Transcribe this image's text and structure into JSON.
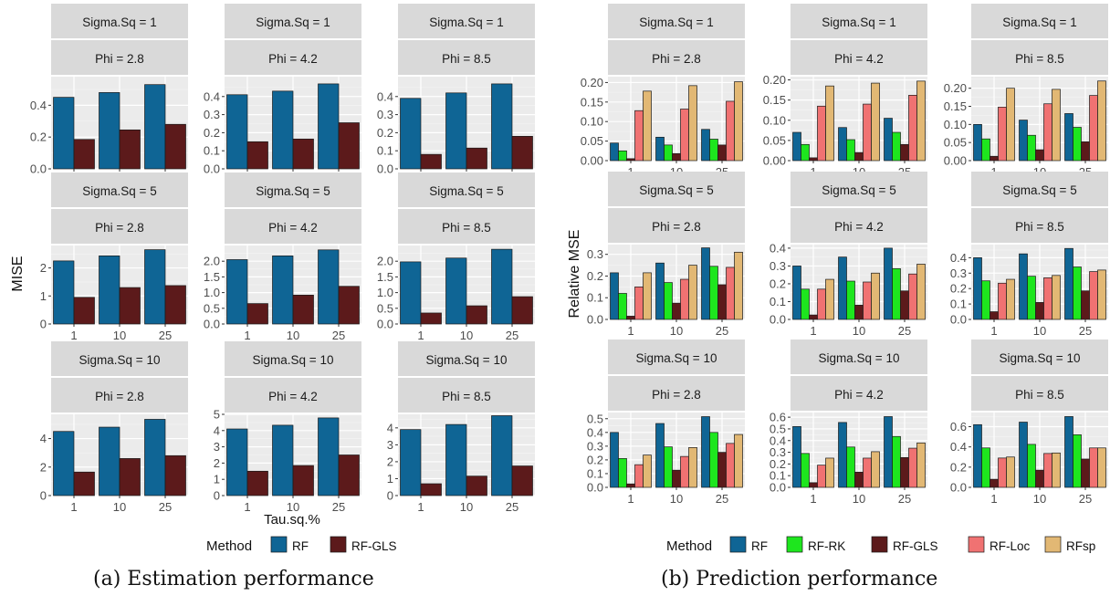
{
  "captions": {
    "a": "(a) Estimation performance",
    "b": "(b) Prediction performance"
  },
  "legend_title": "Method",
  "colors": {
    "RF": "#0f6595",
    "RF-GLS": "#5c1a1b",
    "RF-RK": "#1ee61e",
    "RF-Loc": "#f07272",
    "RFsp": "#e2b874"
  },
  "chart_data": [
    {
      "type": "bar",
      "id": "estimation",
      "xlabel": "Tau.sq.%",
      "ylabel": "MISE",
      "categories": [
        "1",
        "10",
        "25"
      ],
      "methods": [
        "RF",
        "RF-GLS"
      ],
      "legend_position": "bottom",
      "panels": [
        {
          "strip": [
            "Sigma.Sq = 1",
            "Phi = 2.8"
          ],
          "ylim": [
            0,
            0.58
          ],
          "yticks": [
            "0.0",
            "0.2",
            "0.4"
          ],
          "ytick_values": [
            0,
            0.2,
            0.4
          ],
          "series": [
            {
              "name": "RF",
              "values": [
                0.45,
                0.48,
                0.53
              ]
            },
            {
              "name": "RF-GLS",
              "values": [
                0.185,
                0.245,
                0.28
              ]
            }
          ]
        },
        {
          "strip": [
            "Sigma.Sq = 1",
            "Phi = 4.2"
          ],
          "ylim": [
            0,
            0.51
          ],
          "yticks": [
            "0.0",
            "0.1",
            "0.2",
            "0.3",
            "0.4"
          ],
          "ytick_values": [
            0,
            0.1,
            0.2,
            0.3,
            0.4
          ],
          "series": [
            {
              "name": "RF",
              "values": [
                0.41,
                0.43,
                0.47
              ]
            },
            {
              "name": "RF-GLS",
              "values": [
                0.15,
                0.165,
                0.255
              ]
            }
          ]
        },
        {
          "strip": [
            "Sigma.Sq = 1",
            "Phi = 8.5"
          ],
          "ylim": [
            0,
            0.51
          ],
          "yticks": [
            "0.0",
            "0.1",
            "0.2",
            "0.3",
            "0.4"
          ],
          "ytick_values": [
            0,
            0.1,
            0.2,
            0.3,
            0.4
          ],
          "series": [
            {
              "name": "RF",
              "values": [
                0.39,
                0.42,
                0.47
              ]
            },
            {
              "name": "RF-GLS",
              "values": [
                0.08,
                0.115,
                0.18
              ]
            }
          ]
        },
        {
          "strip": [
            "Sigma.Sq = 5",
            "Phi = 2.8"
          ],
          "ylim": [
            0,
            2.8
          ],
          "yticks": [
            "0",
            "1",
            "2"
          ],
          "ytick_values": [
            0,
            1,
            2
          ],
          "series": [
            {
              "name": "RF",
              "values": [
                2.25,
                2.43,
                2.65
              ]
            },
            {
              "name": "RF-GLS",
              "values": [
                0.95,
                1.3,
                1.37
              ]
            }
          ]
        },
        {
          "strip": [
            "Sigma.Sq = 5",
            "Phi = 4.2"
          ],
          "ylim": [
            0,
            2.5
          ],
          "yticks": [
            "0.0",
            "0.5",
            "1.0",
            "1.5",
            "2.0"
          ],
          "ytick_values": [
            0,
            0.5,
            1,
            1.5,
            2
          ],
          "series": [
            {
              "name": "RF",
              "values": [
                2.05,
                2.17,
                2.36
              ]
            },
            {
              "name": "RF-GLS",
              "values": [
                0.65,
                0.92,
                1.2
              ]
            }
          ]
        },
        {
          "strip": [
            "Sigma.Sq = 5",
            "Phi = 8.5"
          ],
          "ylim": [
            0,
            2.5
          ],
          "yticks": [
            "0.0",
            "0.5",
            "1.0",
            "1.5",
            "2.0"
          ],
          "ytick_values": [
            0,
            0.5,
            1,
            1.5,
            2
          ],
          "series": [
            {
              "name": "RF",
              "values": [
                1.98,
                2.1,
                2.38
              ]
            },
            {
              "name": "RF-GLS",
              "values": [
                0.35,
                0.58,
                0.87
              ]
            }
          ]
        },
        {
          "strip": [
            "Sigma.Sq = 10",
            "Phi = 2.8"
          ],
          "ylim": [
            0,
            5.7
          ],
          "yticks": [
            "0",
            "2",
            "4"
          ],
          "ytick_values": [
            0,
            2,
            4
          ],
          "series": [
            {
              "name": "RF",
              "values": [
                4.5,
                4.8,
                5.35
              ]
            },
            {
              "name": "RF-GLS",
              "values": [
                1.65,
                2.6,
                2.8
              ]
            }
          ]
        },
        {
          "strip": [
            "Sigma.Sq = 10",
            "Phi = 4.2"
          ],
          "ylim": [
            0,
            5.0
          ],
          "yticks": [
            "0",
            "1",
            "2",
            "3",
            "4",
            "5"
          ],
          "ytick_values": [
            0,
            1,
            2,
            3,
            4,
            5
          ],
          "series": [
            {
              "name": "RF",
              "values": [
                4.1,
                4.33,
                4.78
              ]
            },
            {
              "name": "RF-GLS",
              "values": [
                1.5,
                1.85,
                2.5
              ]
            }
          ]
        },
        {
          "strip": [
            "Sigma.Sq = 10",
            "Phi = 8.5"
          ],
          "ylim": [
            0,
            4.8
          ],
          "yticks": [
            "0",
            "1",
            "2",
            "3",
            "4"
          ],
          "ytick_values": [
            0,
            1,
            2,
            3,
            4
          ],
          "series": [
            {
              "name": "RF",
              "values": [
                3.9,
                4.2,
                4.72
              ]
            },
            {
              "name": "RF-GLS",
              "values": [
                0.7,
                1.15,
                1.75
              ]
            }
          ]
        }
      ]
    },
    {
      "type": "bar",
      "id": "prediction",
      "xlabel": "",
      "ylabel": "Relative MSE",
      "categories": [
        "1",
        "10",
        "25"
      ],
      "methods": [
        "RF",
        "RF-RK",
        "RF-GLS",
        "RF-Loc",
        "RFsp"
      ],
      "legend_position": "bottom",
      "panels": [
        {
          "strip": [
            "Sigma.Sq = 1",
            "Phi = 2.8"
          ],
          "ylim": [
            0,
            0.215
          ],
          "yticks": [
            "0.00",
            "0.05",
            "0.10",
            "0.15",
            "0.20"
          ],
          "ytick_values": [
            0,
            0.05,
            0.1,
            0.15,
            0.2
          ],
          "series": [
            {
              "name": "RF",
              "values": [
                0.045,
                0.06,
                0.08
              ]
            },
            {
              "name": "RF-RK",
              "values": [
                0.025,
                0.04,
                0.055
              ]
            },
            {
              "name": "RF-GLS",
              "values": [
                0.005,
                0.018,
                0.04
              ]
            },
            {
              "name": "RF-Loc",
              "values": [
                0.128,
                0.132,
                0.152
              ]
            },
            {
              "name": "RFsp",
              "values": [
                0.178,
                0.192,
                0.202
              ]
            }
          ]
        },
        {
          "strip": [
            "Sigma.Sq = 1",
            "Phi = 4.2"
          ],
          "ylim": [
            0,
            0.208
          ],
          "yticks": [
            "0.00",
            "0.05",
            "0.10",
            "0.15",
            "0.20"
          ],
          "ytick_values": [
            0,
            0.05,
            0.1,
            0.15,
            0.2
          ],
          "series": [
            {
              "name": "RF",
              "values": [
                0.07,
                0.082,
                0.105
              ]
            },
            {
              "name": "RF-RK",
              "values": [
                0.04,
                0.052,
                0.07
              ]
            },
            {
              "name": "RF-GLS",
              "values": [
                0.007,
                0.02,
                0.04
              ]
            },
            {
              "name": "RF-Loc",
              "values": [
                0.135,
                0.14,
                0.162
              ]
            },
            {
              "name": "RFsp",
              "values": [
                0.185,
                0.192,
                0.197
              ]
            }
          ]
        },
        {
          "strip": [
            "Sigma.Sq = 1",
            "Phi = 8.5"
          ],
          "ylim": [
            0,
            0.232
          ],
          "yticks": [
            "0.00",
            "0.05",
            "0.10",
            "0.15",
            "0.20"
          ],
          "ytick_values": [
            0,
            0.05,
            0.1,
            0.15,
            0.2
          ],
          "series": [
            {
              "name": "RF",
              "values": [
                0.1,
                0.112,
                0.13
              ]
            },
            {
              "name": "RF-RK",
              "values": [
                0.06,
                0.07,
                0.092
              ]
            },
            {
              "name": "RF-GLS",
              "values": [
                0.012,
                0.03,
                0.052
              ]
            },
            {
              "name": "RF-Loc",
              "values": [
                0.148,
                0.157,
                0.18
              ]
            },
            {
              "name": "RFsp",
              "values": [
                0.2,
                0.197,
                0.22
              ]
            }
          ]
        },
        {
          "strip": [
            "Sigma.Sq = 5",
            "Phi = 2.8"
          ],
          "ylim": [
            0,
            0.345
          ],
          "yticks": [
            "0.0",
            "0.1",
            "0.2",
            "0.3"
          ],
          "ytick_values": [
            0,
            0.1,
            0.2,
            0.3
          ],
          "series": [
            {
              "name": "RF",
              "values": [
                0.215,
                0.26,
                0.33
              ]
            },
            {
              "name": "RF-RK",
              "values": [
                0.12,
                0.17,
                0.245
              ]
            },
            {
              "name": "RF-GLS",
              "values": [
                0.015,
                0.075,
                0.16
              ]
            },
            {
              "name": "RF-Loc",
              "values": [
                0.15,
                0.185,
                0.24
              ]
            },
            {
              "name": "RFsp",
              "values": [
                0.215,
                0.25,
                0.31
              ]
            }
          ]
        },
        {
          "strip": [
            "Sigma.Sq = 5",
            "Phi = 4.2"
          ],
          "ylim": [
            0,
            0.42
          ],
          "yticks": [
            "0.0",
            "0.1",
            "0.2",
            "0.3",
            "0.4"
          ],
          "ytick_values": [
            0,
            0.1,
            0.2,
            0.3,
            0.4
          ],
          "series": [
            {
              "name": "RF",
              "values": [
                0.3,
                0.35,
                0.4
              ]
            },
            {
              "name": "RF-RK",
              "values": [
                0.17,
                0.215,
                0.285
              ]
            },
            {
              "name": "RF-GLS",
              "values": [
                0.025,
                0.08,
                0.16
              ]
            },
            {
              "name": "RF-Loc",
              "values": [
                0.17,
                0.21,
                0.255
              ]
            },
            {
              "name": "RFsp",
              "values": [
                0.225,
                0.26,
                0.31
              ]
            }
          ]
        },
        {
          "strip": [
            "Sigma.Sq = 5",
            "Phi = 8.5"
          ],
          "ylim": [
            0,
            0.485
          ],
          "yticks": [
            "0.0",
            "0.1",
            "0.2",
            "0.3",
            "0.4"
          ],
          "ytick_values": [
            0,
            0.1,
            0.2,
            0.3,
            0.4
          ],
          "series": [
            {
              "name": "RF",
              "values": [
                0.4,
                0.425,
                0.46
              ]
            },
            {
              "name": "RF-RK",
              "values": [
                0.25,
                0.28,
                0.34
              ]
            },
            {
              "name": "RF-GLS",
              "values": [
                0.05,
                0.11,
                0.185
              ]
            },
            {
              "name": "RF-Loc",
              "values": [
                0.235,
                0.27,
                0.31
              ]
            },
            {
              "name": "RFsp",
              "values": [
                0.26,
                0.285,
                0.32
              ]
            }
          ]
        },
        {
          "strip": [
            "Sigma.Sq = 10",
            "Phi = 2.8"
          ],
          "ylim": [
            0,
            0.545
          ],
          "yticks": [
            "0.0",
            "0.1",
            "0.2",
            "0.3",
            "0.4",
            "0.5"
          ],
          "ytick_values": [
            0,
            0.1,
            0.2,
            0.3,
            0.4,
            0.5
          ],
          "series": [
            {
              "name": "RF",
              "values": [
                0.4,
                0.465,
                0.515
              ]
            },
            {
              "name": "RF-RK",
              "values": [
                0.21,
                0.295,
                0.4
              ]
            },
            {
              "name": "RF-GLS",
              "values": [
                0.025,
                0.125,
                0.255
              ]
            },
            {
              "name": "RF-Loc",
              "values": [
                0.165,
                0.225,
                0.32
              ]
            },
            {
              "name": "RFsp",
              "values": [
                0.235,
                0.29,
                0.385
              ]
            }
          ]
        },
        {
          "strip": [
            "Sigma.Sq = 10",
            "Phi = 4.2"
          ],
          "ylim": [
            0,
            0.64
          ],
          "yticks": [
            "0.0",
            "0.1",
            "0.2",
            "0.3",
            "0.4",
            "0.5",
            "0.6"
          ],
          "ytick_values": [
            0,
            0.1,
            0.2,
            0.3,
            0.4,
            0.5,
            0.6
          ],
          "series": [
            {
              "name": "RF",
              "values": [
                0.52,
                0.555,
                0.605
              ]
            },
            {
              "name": "RF-RK",
              "values": [
                0.29,
                0.345,
                0.435
              ]
            },
            {
              "name": "RF-GLS",
              "values": [
                0.04,
                0.13,
                0.255
              ]
            },
            {
              "name": "RF-Loc",
              "values": [
                0.19,
                0.25,
                0.335
              ]
            },
            {
              "name": "RFsp",
              "values": [
                0.25,
                0.305,
                0.38
              ]
            }
          ]
        },
        {
          "strip": [
            "Sigma.Sq = 10",
            "Phi = 8.5"
          ],
          "ylim": [
            0,
            0.74
          ],
          "yticks": [
            "0.0",
            "0.2",
            "0.4",
            "0.6"
          ],
          "ytick_values": [
            0,
            0.2,
            0.4,
            0.6
          ],
          "series": [
            {
              "name": "RF",
              "values": [
                0.62,
                0.645,
                0.7
              ]
            },
            {
              "name": "RF-RK",
              "values": [
                0.39,
                0.425,
                0.52
              ]
            },
            {
              "name": "RF-GLS",
              "values": [
                0.08,
                0.17,
                0.28
              ]
            },
            {
              "name": "RF-Loc",
              "values": [
                0.29,
                0.335,
                0.39
              ]
            },
            {
              "name": "RFsp",
              "values": [
                0.3,
                0.34,
                0.39
              ]
            }
          ]
        }
      ]
    }
  ]
}
